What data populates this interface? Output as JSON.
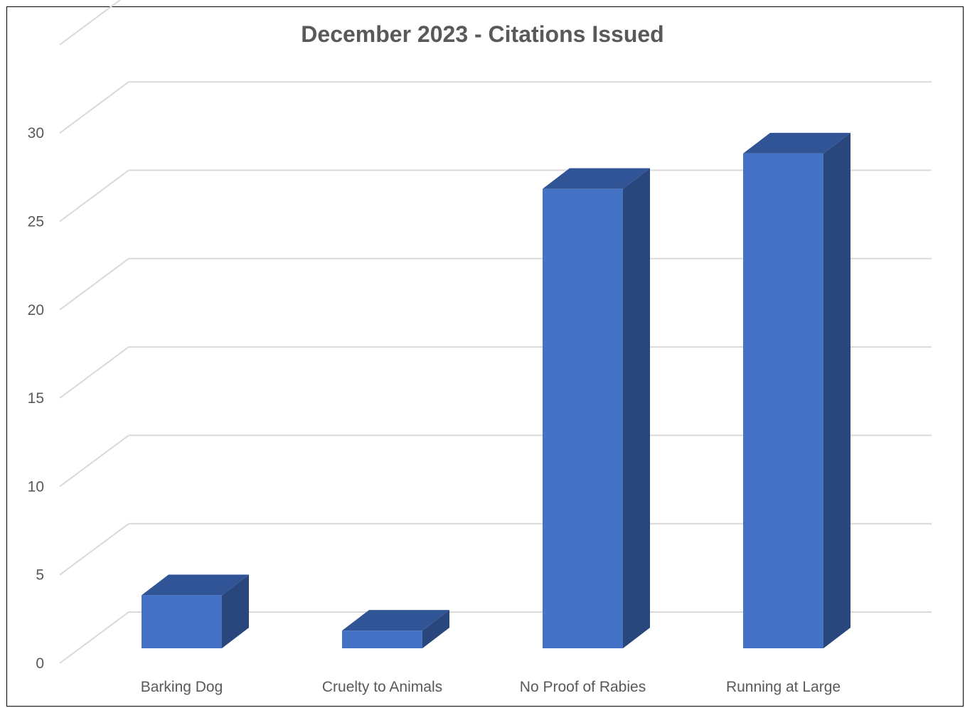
{
  "chart_data": {
    "type": "bar",
    "title": "December 2023 - Citations Issued",
    "categories": [
      "Barking Dog",
      "Cruelty to Animals",
      "No Proof of Rabies",
      "Running at Large"
    ],
    "series": [
      {
        "values": [
          3,
          1,
          26,
          28
        ]
      }
    ],
    "ylim": [
      0,
      30
    ],
    "y_ticks": [
      "0",
      "5",
      "10",
      "15",
      "20",
      "25",
      "30"
    ],
    "grid": true,
    "style": "3d-column",
    "colors": {
      "front": "#4472c4",
      "top": "#305496",
      "side": "#2a477d"
    }
  }
}
